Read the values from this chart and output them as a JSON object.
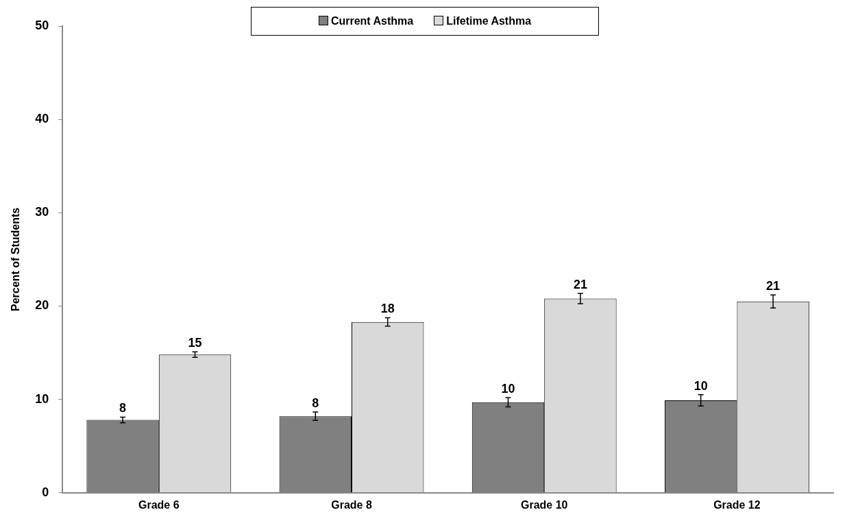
{
  "chart_data": {
    "type": "bar",
    "ylabel": "Percent of Students",
    "categories": [
      "Grade 6",
      "Grade 8",
      "Grade 10",
      "Grade 12"
    ],
    "series": [
      {
        "name": "Current Asthma",
        "color": "#808080",
        "values": [
          7.8,
          8.2,
          9.7,
          9.9
        ],
        "errors": [
          0.3,
          0.45,
          0.5,
          0.6
        ],
        "value_labels": [
          "8",
          "8",
          "10",
          "10"
        ]
      },
      {
        "name": "Lifetime Asthma",
        "color": "#d9d9d9",
        "values": [
          14.8,
          18.3,
          20.8,
          20.5
        ],
        "errors": [
          0.3,
          0.45,
          0.55,
          0.7
        ],
        "value_labels": [
          "15",
          "18",
          "21",
          "21"
        ]
      }
    ],
    "ylim": [
      0,
      50
    ],
    "yticks": [
      0,
      10,
      20,
      30,
      40,
      50
    ],
    "grid": false,
    "legend": "top"
  }
}
